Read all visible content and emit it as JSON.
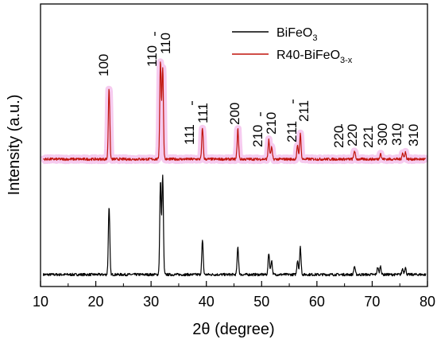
{
  "chart_data": {
    "type": "line",
    "xlabel": "2θ (degree)",
    "ylabel": "Intensity (a.u.)",
    "xlim": [
      10,
      80
    ],
    "x_ticks": [
      "10",
      "20",
      "30",
      "40",
      "50",
      "60",
      "70",
      "80"
    ],
    "y_ticks_shown": false,
    "legend_position": "top-right",
    "series": [
      {
        "name": "BiFeO3",
        "legend_main": "BiFeO",
        "legend_sub": "3",
        "color": "#000000",
        "baseline": 0,
        "peaks": [
          {
            "x": 22.4,
            "h": 0.57
          },
          {
            "x": 31.7,
            "h": 0.78
          },
          {
            "x": 32.1,
            "h": 0.82
          },
          {
            "x": 39.3,
            "h": 0.28
          },
          {
            "x": 45.7,
            "h": 0.23
          },
          {
            "x": 51.3,
            "h": 0.18
          },
          {
            "x": 51.8,
            "h": 0.12
          },
          {
            "x": 56.5,
            "h": 0.12
          },
          {
            "x": 57.0,
            "h": 0.23
          },
          {
            "x": 66.8,
            "h": 0.07
          },
          {
            "x": 71.0,
            "h": 0.06
          },
          {
            "x": 71.5,
            "h": 0.07
          },
          {
            "x": 75.5,
            "h": 0.05
          },
          {
            "x": 76.0,
            "h": 0.06
          }
        ]
      },
      {
        "name": "R40-BiFeO3-x",
        "legend_main": "R40-BiFeO",
        "legend_sub": "3-x",
        "color": "#c0140c",
        "band_color": "#f4c2ec",
        "baseline": 1,
        "peaks": [
          {
            "x": 22.4,
            "h": 0.6
          },
          {
            "x": 31.7,
            "h": 0.82
          },
          {
            "x": 32.1,
            "h": 0.77
          },
          {
            "x": 39.3,
            "h": 0.26
          },
          {
            "x": 45.7,
            "h": 0.25
          },
          {
            "x": 51.3,
            "h": 0.16
          },
          {
            "x": 51.8,
            "h": 0.1
          },
          {
            "x": 56.5,
            "h": 0.11
          },
          {
            "x": 57.0,
            "h": 0.21
          },
          {
            "x": 66.8,
            "h": 0.07
          },
          {
            "x": 71.5,
            "h": 0.05
          },
          {
            "x": 75.5,
            "h": 0.05
          },
          {
            "x": 76.0,
            "h": 0.06
          }
        ]
      }
    ],
    "annotations": [
      {
        "label": "100",
        "bar": false
      },
      {
        "label": "110",
        "bar": false
      },
      {
        "label": "110",
        "bar": true
      },
      {
        "label": "111",
        "bar": false
      },
      {
        "label": "111",
        "bar": true
      },
      {
        "label": "200",
        "bar": false
      },
      {
        "label": "210",
        "bar": false
      },
      {
        "label": "210",
        "bar": true
      },
      {
        "label": "211",
        "bar": false
      },
      {
        "label": "211",
        "bar": true
      },
      {
        "label": "220",
        "bar": false
      },
      {
        "label": "220",
        "bar": true
      },
      {
        "label": "221",
        "bar": false
      },
      {
        "label": "300",
        "bar": false
      },
      {
        "label": "310",
        "bar": false
      },
      {
        "label": "310",
        "bar": true
      }
    ]
  }
}
